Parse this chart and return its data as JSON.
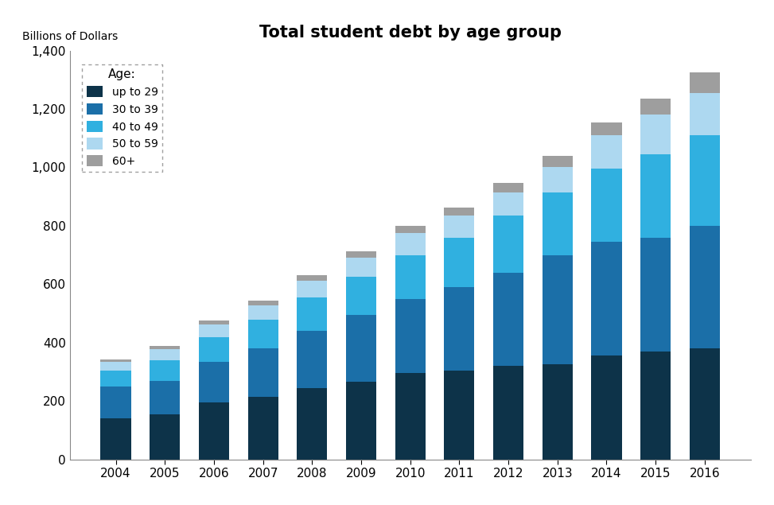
{
  "years": [
    2004,
    2005,
    2006,
    2007,
    2008,
    2009,
    2010,
    2011,
    2012,
    2013,
    2014,
    2015,
    2016
  ],
  "up_to_29": [
    140,
    155,
    195,
    215,
    245,
    265,
    295,
    305,
    320,
    325,
    355,
    370,
    380
  ],
  "age_30_39": [
    110,
    115,
    140,
    165,
    195,
    230,
    255,
    285,
    320,
    375,
    390,
    390,
    420
  ],
  "age_40_49": [
    55,
    70,
    85,
    100,
    115,
    130,
    150,
    170,
    195,
    215,
    250,
    285,
    310
  ],
  "age_50_59": [
    30,
    38,
    43,
    48,
    57,
    65,
    75,
    75,
    80,
    85,
    115,
    135,
    145
  ],
  "age_60plus": [
    8,
    12,
    14,
    17,
    19,
    22,
    25,
    28,
    33,
    38,
    45,
    55,
    70
  ],
  "colors": {
    "up_to_29": "#0d3349",
    "age_30_39": "#1b6fa8",
    "age_40_49": "#30b0e0",
    "age_50_59": "#add8f0",
    "age_60plus": "#9e9e9e"
  },
  "title": "Total student debt by age group",
  "ylabel": "Billions of Dollars",
  "ylim": [
    0,
    1400
  ],
  "yticks": [
    0,
    200,
    400,
    600,
    800,
    1000,
    1200,
    1400
  ],
  "legend_labels": [
    "up to 29",
    "30 to 39",
    "40 to 49",
    "50 to 59",
    "60+"
  ],
  "legend_title": "Age:"
}
